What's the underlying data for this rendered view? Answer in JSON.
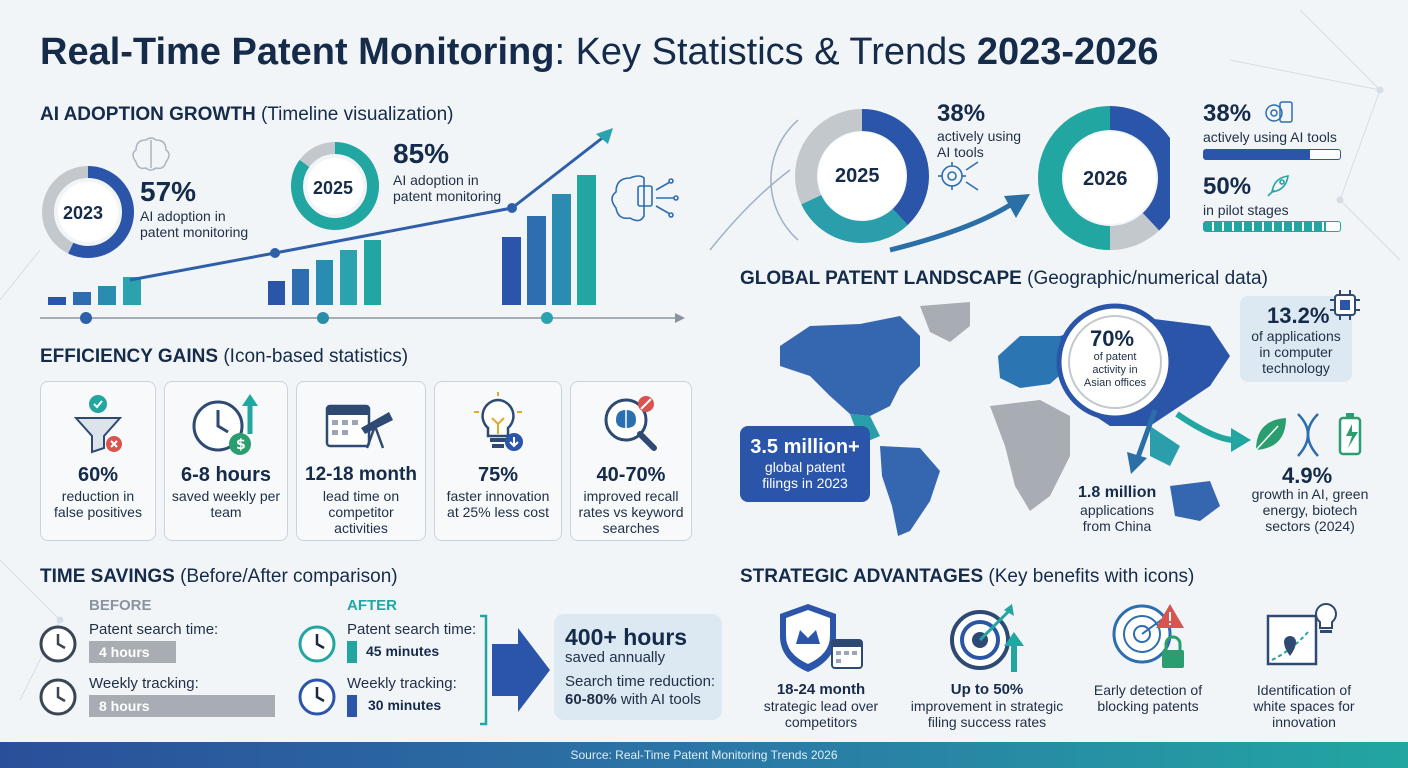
{
  "title": {
    "bold1": "Real-Time Patent Monitoring",
    "mid": ": Key Statistics & Trends ",
    "bold2": "2023-2026"
  },
  "ai_adoption": {
    "heading": "AI ADOPTION GROWTH",
    "subheading": "(Timeline visualization)",
    "y2023": {
      "year": "2023",
      "value": "57%",
      "label1": "AI adoption in",
      "label2": "patent monitoring",
      "fraction": 0.57
    },
    "y2025": {
      "year": "2025",
      "value": "85%",
      "label1": "AI adoption in",
      "label2": "patent monitoring",
      "fraction": 0.85
    }
  },
  "top_right": {
    "y2025": {
      "year": "2025",
      "value": "38%",
      "label1": "actively using",
      "label2": "AI tools",
      "fraction": 0.38
    },
    "y2026": {
      "year": "2026",
      "a_value": "38%",
      "a_label": "actively using AI tools",
      "a_fraction": 0.38,
      "b_value": "50%",
      "b_label": "in pilot stages",
      "b_fraction": 0.5
    }
  },
  "efficiency": {
    "heading": "EFFICIENCY GAINS",
    "subheading": "(Icon-based statistics)",
    "cards": [
      {
        "value": "60%",
        "label": "reduction in false positives",
        "icon": "funnel-icon"
      },
      {
        "value": "6-8 hours",
        "label": "saved weekly per team",
        "icon": "clock-dollar-icon"
      },
      {
        "value": "12-18 month",
        "label": "lead time on competitor activities",
        "icon": "calendar-telescope-icon"
      },
      {
        "value": "75%",
        "label": "faster innovation at 25% less cost",
        "icon": "lightbulb-icon"
      },
      {
        "value": "40-70%",
        "label": "improved recall rates vs keyword searches",
        "icon": "brain-magnifier-icon"
      }
    ]
  },
  "time_savings": {
    "heading": "TIME SAVINGS",
    "subheading": "(Before/After comparison)",
    "before_label": "BEFORE",
    "after_label": "AFTER",
    "before": [
      {
        "label": "Patent search time:",
        "value": "4 hours"
      },
      {
        "label": "Weekly tracking:",
        "value": "8 hours"
      }
    ],
    "after": [
      {
        "label": "Patent search time:",
        "value": "45 minutes"
      },
      {
        "label": "Weekly tracking:",
        "value": "30 minutes"
      }
    ],
    "summary": {
      "big": "400+ hours",
      "line1": "saved annually",
      "line2": "Search time reduction:",
      "line3_bold": "60-80%",
      "line3_rest": " with AI tools"
    }
  },
  "global": {
    "heading": "GLOBAL PATENT LANDSCAPE",
    "subheading": "(Geographic/numerical data)",
    "asia_value": "70%",
    "asia_label1": "of patent",
    "asia_label2": "activity in",
    "asia_label3": "Asian offices",
    "filings_value": "3.5 million+",
    "filings_label1": "global patent",
    "filings_label2": "filings in 2023",
    "china_value": "1.8 million",
    "china_label1": "applications",
    "china_label2": "from China",
    "comp_value": "13.2%",
    "comp_label1": "of applications",
    "comp_label2": "in computer",
    "comp_label3": "technology",
    "growth_value": "4.9%",
    "growth_label1": "growth in AI, green",
    "growth_label2": "energy, biotech",
    "growth_label3": "sectors (2024)"
  },
  "strategic": {
    "heading": "STRATEGIC ADVANTAGES",
    "subheading": "(Key benefits with icons)",
    "items": [
      {
        "bold": "18-24 month",
        "rest1": "strategic lead over",
        "rest2": "competitors"
      },
      {
        "bold": "Up to 50%",
        "rest1": "improvement in strategic",
        "rest2": "filing success rates"
      },
      {
        "bold": "",
        "rest1": "Early detection of",
        "rest2": "blocking patents"
      },
      {
        "bold": "",
        "rest1": "Identification of",
        "rest2": "white spaces for",
        "rest3": "innovation"
      }
    ]
  },
  "footer": "Source: Real-Time Patent Monitoring Trends 2026",
  "colors": {
    "navy": "#152b4a",
    "blue": "#2a55a8",
    "teal": "#22a6a2",
    "gray": "#a7adb3"
  }
}
